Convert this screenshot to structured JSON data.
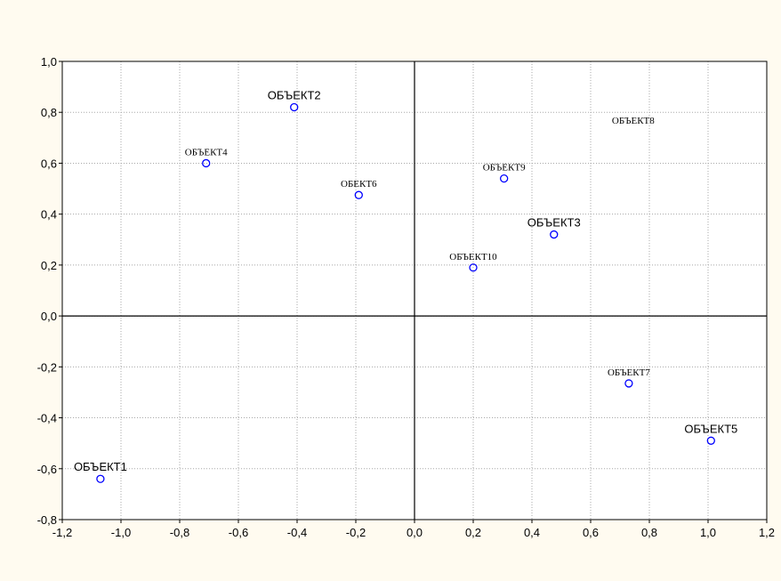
{
  "chart_data": {
    "type": "scatter",
    "title": "",
    "xlabel": "",
    "ylabel": "",
    "xlim": [
      -1.2,
      1.2
    ],
    "ylim": [
      -0.8,
      1.0
    ],
    "x_ticks": [
      "-1,2",
      "-1,0",
      "-0,8",
      "-0,6",
      "-0,4",
      "-0,2",
      "0,0",
      "0,2",
      "0,4",
      "0,6",
      "0,8",
      "1,0",
      "1,2"
    ],
    "y_ticks": [
      "1,0",
      "0,8",
      "0,6",
      "0,4",
      "0,2",
      "0,0",
      "-0,2",
      "-0,4",
      "-0,6",
      "-0,8"
    ],
    "grid": true,
    "point_color": "#0000FF",
    "points": [
      {
        "label": "ОБЪЕКТ1",
        "x": -1.07,
        "y": -0.64,
        "style": "sans"
      },
      {
        "label": "ОБЪЕКТ2",
        "x": -0.41,
        "y": 0.82,
        "style": "sans"
      },
      {
        "label": "ОБЪЕКТ3",
        "x": 0.475,
        "y": 0.32,
        "style": "sans"
      },
      {
        "label": "ОБЪЕКТ4",
        "x": -0.71,
        "y": 0.6,
        "style": "serif"
      },
      {
        "label": "ОБЪЕКТ5",
        "x": 1.01,
        "y": -0.49,
        "style": "sans"
      },
      {
        "label": "ОБЕКТ6",
        "x": -0.19,
        "y": 0.475,
        "style": "serif"
      },
      {
        "label": "ОБЪЕКТ7",
        "x": 0.73,
        "y": -0.265,
        "style": "serif"
      },
      {
        "label": "ОБЪЕКТ8",
        "x": null,
        "y": null,
        "label_x": 0.745,
        "label_y": 0.755,
        "style": "serif"
      },
      {
        "label": "ОБЪЕКТ9",
        "x": 0.305,
        "y": 0.54,
        "style": "serif"
      },
      {
        "label": "ОБЪЕКТ10",
        "x": 0.2,
        "y": 0.19,
        "style": "serif"
      }
    ]
  }
}
